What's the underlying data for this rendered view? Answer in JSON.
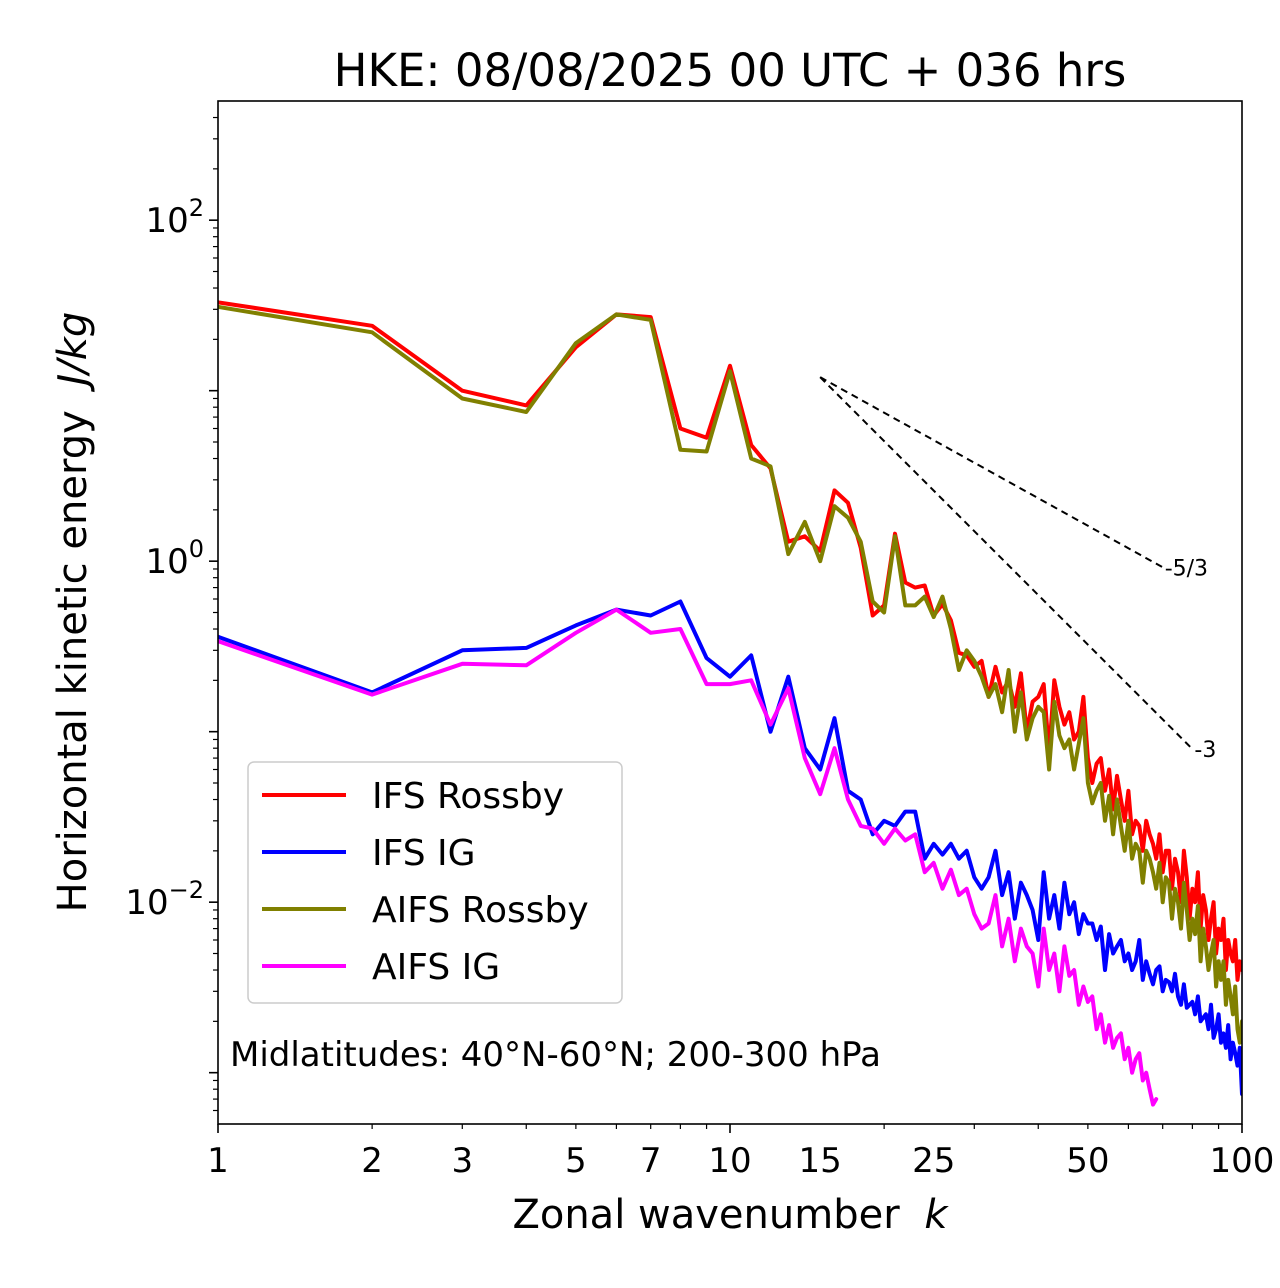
{
  "chart_data": {
    "type": "line",
    "title": "HKE: 08/08/2025 00 UTC + 036 hrs",
    "xlabel": "Zonal wavenumber",
    "xlabel_var": "k",
    "ylabel": "Horizontal kinetic energy",
    "ylabel_units": "J/kg",
    "xscale": "log",
    "yscale": "log",
    "xlim": [
      1,
      100
    ],
    "ylim": [
      0.0005,
      500
    ],
    "x_ticks": [
      {
        "value": 1,
        "label": "1"
      },
      {
        "value": 2,
        "label": "2"
      },
      {
        "value": 3,
        "label": "3"
      },
      {
        "value": 5,
        "label": "5"
      },
      {
        "value": 7,
        "label": "7"
      },
      {
        "value": 10,
        "label": "10"
      },
      {
        "value": 15,
        "label": "15"
      },
      {
        "value": 25,
        "label": "25"
      },
      {
        "value": 50,
        "label": "50"
      },
      {
        "value": 100,
        "label": "100"
      }
    ],
    "y_ticks": [
      {
        "value": 0.01,
        "base": "10",
        "exp": "−2"
      },
      {
        "value": 1,
        "base": "10",
        "exp": "0"
      },
      {
        "value": 100,
        "base": "10",
        "exp": "2"
      }
    ],
    "annotation": "Midlatitudes: 40°N-60°N; 200-300 hPa",
    "legend_position": "lower-left",
    "reference_lines": [
      {
        "label": "-5/3",
        "slope": -1.6667,
        "x0": 15,
        "y0": 12,
        "x1": 70
      },
      {
        "label": "-3",
        "slope": -3,
        "x0": 15,
        "y0": 12,
        "x1": 80
      }
    ],
    "series": [
      {
        "name": "IFS Rossby",
        "color": "#ff0000",
        "x": [
          1,
          2,
          3,
          4,
          5,
          6,
          7,
          8,
          9,
          10,
          11,
          12,
          13,
          14,
          15,
          16,
          17,
          18,
          19,
          20,
          21,
          22,
          23,
          24,
          25,
          26,
          27,
          28,
          29,
          30,
          31,
          32,
          33,
          34,
          35,
          36,
          37,
          38,
          39,
          40,
          41,
          42,
          43,
          44,
          45,
          46,
          47,
          48,
          49,
          50,
          51,
          52,
          53,
          54,
          55,
          56,
          57,
          58,
          59,
          60,
          61,
          62,
          63,
          64,
          65,
          66,
          67,
          68,
          69,
          70,
          71,
          72,
          73,
          74,
          75,
          76,
          77,
          78,
          79,
          80,
          81,
          82,
          83,
          84,
          85,
          86,
          87,
          88,
          89,
          90,
          91,
          92,
          93,
          94,
          95,
          96,
          97,
          98,
          99,
          100
        ],
        "y": [
          33,
          24,
          10,
          8.2,
          18,
          28,
          27,
          6,
          5.3,
          14,
          4.8,
          3.5,
          1.3,
          1.4,
          1.15,
          2.6,
          2.2,
          1.2,
          0.48,
          0.55,
          1.45,
          0.75,
          0.7,
          0.72,
          0.48,
          0.56,
          0.45,
          0.29,
          0.28,
          0.24,
          0.26,
          0.16,
          0.24,
          0.17,
          0.2,
          0.14,
          0.22,
          0.1,
          0.15,
          0.16,
          0.19,
          0.075,
          0.2,
          0.14,
          0.11,
          0.13,
          0.09,
          0.1,
          0.16,
          0.07,
          0.05,
          0.065,
          0.07,
          0.045,
          0.06,
          0.035,
          0.055,
          0.04,
          0.03,
          0.045,
          0.025,
          0.03,
          0.028,
          0.02,
          0.03,
          0.025,
          0.022,
          0.018,
          0.025,
          0.015,
          0.02,
          0.02,
          0.012,
          0.018,
          0.015,
          0.01,
          0.02,
          0.014,
          0.008,
          0.012,
          0.01,
          0.015,
          0.007,
          0.011,
          0.009,
          0.006,
          0.008,
          0.01,
          0.005,
          0.007,
          0.006,
          0.008,
          0.004,
          0.006,
          0.005,
          0.0045,
          0.006,
          0.0035,
          0.0045,
          0.004
        ]
      },
      {
        "name": "IFS IG",
        "color": "#0000ff",
        "x": [
          1,
          2,
          3,
          4,
          5,
          6,
          7,
          8,
          9,
          10,
          11,
          12,
          13,
          14,
          15,
          16,
          17,
          18,
          19,
          20,
          21,
          22,
          23,
          24,
          25,
          26,
          27,
          28,
          29,
          30,
          31,
          32,
          33,
          34,
          35,
          36,
          37,
          38,
          39,
          40,
          41,
          42,
          43,
          44,
          45,
          46,
          47,
          48,
          49,
          50,
          51,
          52,
          53,
          54,
          55,
          56,
          57,
          58,
          59,
          60,
          61,
          62,
          63,
          64,
          65,
          66,
          67,
          68,
          69,
          70,
          71,
          72,
          73,
          74,
          75,
          76,
          77,
          78,
          79,
          80,
          81,
          82,
          83,
          84,
          85,
          86,
          87,
          88,
          89,
          90,
          91,
          92,
          93,
          94,
          95,
          96,
          97,
          98,
          99,
          100
        ],
        "y": [
          0.36,
          0.17,
          0.3,
          0.31,
          0.42,
          0.52,
          0.48,
          0.58,
          0.27,
          0.21,
          0.28,
          0.1,
          0.21,
          0.08,
          0.06,
          0.12,
          0.045,
          0.04,
          0.025,
          0.03,
          0.028,
          0.034,
          0.034,
          0.018,
          0.022,
          0.019,
          0.022,
          0.018,
          0.02,
          0.014,
          0.012,
          0.014,
          0.02,
          0.011,
          0.015,
          0.008,
          0.013,
          0.011,
          0.009,
          0.006,
          0.015,
          0.008,
          0.011,
          0.007,
          0.013,
          0.0085,
          0.01,
          0.0065,
          0.0085,
          0.0075,
          0.0075,
          0.006,
          0.0072,
          0.004,
          0.0065,
          0.005,
          0.0055,
          0.006,
          0.0045,
          0.005,
          0.004,
          0.0045,
          0.006,
          0.0035,
          0.0045,
          0.0038,
          0.0033,
          0.004,
          0.0042,
          0.003,
          0.0035,
          0.0034,
          0.003,
          0.0038,
          0.0028,
          0.0025,
          0.0033,
          0.0024,
          0.0025,
          0.0026,
          0.0022,
          0.0028,
          0.002,
          0.0021,
          0.0022,
          0.0018,
          0.0025,
          0.0016,
          0.0018,
          0.0022,
          0.0015,
          0.0017,
          0.0014,
          0.0019,
          0.0012,
          0.0015,
          0.0013,
          0.0011,
          0.0014,
          0.00075
        ]
      },
      {
        "name": "AIFS Rossby",
        "color": "#808000",
        "x": [
          1,
          2,
          3,
          4,
          5,
          6,
          7,
          8,
          9,
          10,
          11,
          12,
          13,
          14,
          15,
          16,
          17,
          18,
          19,
          20,
          21,
          22,
          23,
          24,
          25,
          26,
          27,
          28,
          29,
          30,
          31,
          32,
          33,
          34,
          35,
          36,
          37,
          38,
          39,
          40,
          41,
          42,
          43,
          44,
          45,
          46,
          47,
          48,
          49,
          50,
          51,
          52,
          53,
          54,
          55,
          56,
          57,
          58,
          59,
          60,
          61,
          62,
          63,
          64,
          65,
          66,
          67,
          68,
          69,
          70,
          71,
          72,
          73,
          74,
          75,
          76,
          77,
          78,
          79,
          80,
          81,
          82,
          83,
          84,
          85,
          86,
          87,
          88,
          89,
          90,
          91,
          92,
          93,
          94,
          95,
          96,
          97,
          98,
          99,
          100
        ],
        "y": [
          31,
          22,
          9,
          7.5,
          19,
          28,
          26,
          4.5,
          4.4,
          13,
          4,
          3.6,
          1.1,
          1.7,
          1,
          2.1,
          1.8,
          1.3,
          0.58,
          0.5,
          1.4,
          0.55,
          0.55,
          0.62,
          0.47,
          0.62,
          0.4,
          0.23,
          0.3,
          0.26,
          0.21,
          0.16,
          0.19,
          0.13,
          0.23,
          0.1,
          0.17,
          0.09,
          0.12,
          0.14,
          0.13,
          0.06,
          0.15,
          0.095,
          0.08,
          0.09,
          0.06,
          0.085,
          0.12,
          0.05,
          0.038,
          0.045,
          0.05,
          0.03,
          0.042,
          0.025,
          0.04,
          0.028,
          0.02,
          0.03,
          0.018,
          0.022,
          0.02,
          0.013,
          0.02,
          0.018,
          0.015,
          0.012,
          0.017,
          0.01,
          0.014,
          0.013,
          0.008,
          0.012,
          0.01,
          0.007,
          0.013,
          0.009,
          0.006,
          0.008,
          0.0065,
          0.0095,
          0.0045,
          0.007,
          0.0055,
          0.004,
          0.005,
          0.006,
          0.0032,
          0.0045,
          0.0035,
          0.0045,
          0.0025,
          0.0035,
          0.0028,
          0.0022,
          0.0032,
          0.0018,
          0.0015,
          0.002
        ]
      },
      {
        "name": "AIFS IG",
        "color": "#ff00ff",
        "x": [
          1,
          2,
          3,
          4,
          5,
          6,
          7,
          8,
          9,
          10,
          11,
          12,
          13,
          14,
          15,
          16,
          17,
          18,
          19,
          20,
          21,
          22,
          23,
          24,
          25,
          26,
          27,
          28,
          29,
          30,
          31,
          32,
          33,
          34,
          35,
          36,
          37,
          38,
          39,
          40,
          41,
          42,
          43,
          44,
          45,
          46,
          47,
          48,
          49,
          50,
          51,
          52,
          53,
          54,
          55,
          56,
          57,
          58,
          59,
          60,
          61,
          62,
          63,
          64,
          65,
          66,
          67,
          68
        ],
        "y": [
          0.34,
          0.165,
          0.25,
          0.245,
          0.38,
          0.52,
          0.38,
          0.4,
          0.19,
          0.19,
          0.2,
          0.11,
          0.18,
          0.07,
          0.043,
          0.08,
          0.04,
          0.028,
          0.027,
          0.022,
          0.027,
          0.023,
          0.025,
          0.015,
          0.017,
          0.012,
          0.0155,
          0.011,
          0.012,
          0.0085,
          0.007,
          0.0075,
          0.011,
          0.0055,
          0.008,
          0.0045,
          0.007,
          0.0055,
          0.005,
          0.0032,
          0.007,
          0.004,
          0.005,
          0.003,
          0.0055,
          0.0037,
          0.004,
          0.0025,
          0.0032,
          0.0026,
          0.0028,
          0.0018,
          0.0022,
          0.0015,
          0.0019,
          0.0014,
          0.0016,
          0.0017,
          0.0012,
          0.0014,
          0.001,
          0.0012,
          0.0013,
          0.0009,
          0.001,
          0.0008,
          0.00065,
          0.0007
        ]
      }
    ]
  }
}
